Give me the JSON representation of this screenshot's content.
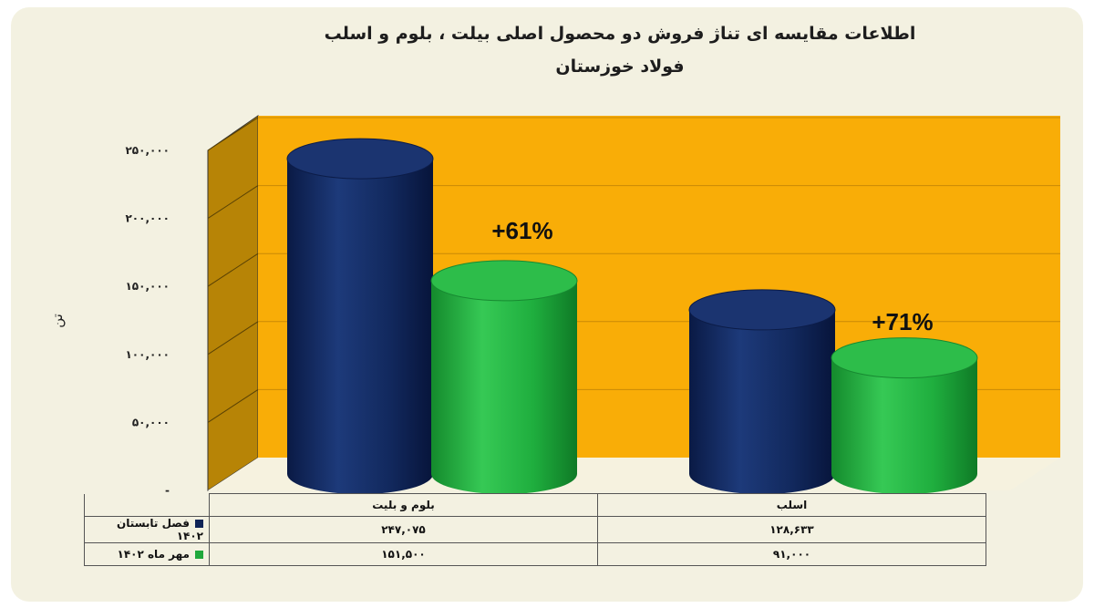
{
  "title_line1": "اطلاعات مقایسه ای تناژ فروش دو محصول اصلی بیلت ، بلوم و اسلب",
  "title_line2": "فولاد خوزستان",
  "chart_data": {
    "type": "bar",
    "title": "اطلاعات مقایسه ای تناژ فروش دو محصول اصلی بیلت ، بلوم و اسلب فولاد خوزستان",
    "ylabel": "تن",
    "xlabel": "",
    "ylim": [
      0,
      250000
    ],
    "yticks": [
      "-",
      "۵۰,۰۰۰",
      "۱۰۰,۰۰۰",
      "۱۵۰,۰۰۰",
      "۲۰۰,۰۰۰",
      "۲۵۰,۰۰۰"
    ],
    "categories": [
      "بلوم و بلیت",
      "اسلب"
    ],
    "series": [
      {
        "name": "فصل تابستان ۱۴۰۲",
        "values": [
          247075,
          128633
        ],
        "labels": [
          "۲۴۷,۰۷۵",
          "۱۲۸,۶۳۳"
        ],
        "color": "#0f2457"
      },
      {
        "name": "مهر ماه ۱۴۰۲",
        "values": [
          151500,
          91000
        ],
        "labels": [
          "۱۵۱,۵۰۰",
          "۹۱,۰۰۰"
        ],
        "color": "#1fa83c"
      }
    ],
    "annotations": [
      "+61%",
      "+71%"
    ],
    "background_color": "#f9ad07",
    "grid": true,
    "legend": "data-table"
  }
}
